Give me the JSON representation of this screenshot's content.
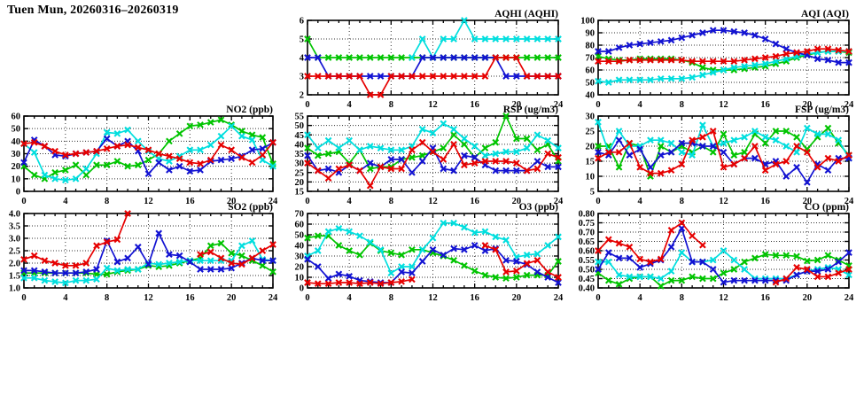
{
  "page_title": "Tuen Mun, 20260316–20260319",
  "chart_data": {
    "type": "line",
    "x_range": [
      0,
      24
    ],
    "x_ticks": {
      "values": [
        0,
        4,
        8,
        12,
        16,
        20,
        24
      ],
      "labels": [
        "0",
        "4",
        "8",
        "12",
        "16",
        "20",
        "24"
      ]
    },
    "grid": "dotted",
    "legend": "none",
    "colors": {
      "red": "#e60000",
      "green": "#00c400",
      "blue": "#1212d2",
      "cyan": "#00dede"
    },
    "draw_order": [
      "green",
      "cyan",
      "blue",
      "red"
    ],
    "charts": [
      {
        "id": "aqhi",
        "title": "AQHI (AQHI)",
        "ylim": [
          2,
          6
        ],
        "ytick_vals": [
          2,
          3,
          4,
          5,
          6
        ],
        "ytick_labels": [
          "2",
          "3",
          "4",
          "5",
          "6"
        ],
        "series": {
          "green": [
            5,
            4,
            4,
            4,
            4,
            4,
            4,
            4,
            4,
            4,
            4,
            4,
            4,
            4,
            4,
            4,
            4,
            4,
            4,
            4,
            4,
            4,
            4,
            4,
            4
          ],
          "cyan": [
            null,
            null,
            null,
            null,
            null,
            null,
            null,
            null,
            null,
            null,
            4,
            5,
            4,
            5,
            5,
            6,
            5,
            5,
            5,
            5,
            5,
            5,
            5,
            5,
            5
          ],
          "blue": [
            4,
            4,
            3,
            3,
            3,
            3,
            3,
            3,
            3,
            3,
            3,
            4,
            4,
            4,
            4,
            4,
            4,
            4,
            4,
            3,
            3,
            3,
            3,
            3,
            3
          ],
          "red": [
            3,
            3,
            3,
            3,
            3,
            3,
            2,
            2,
            3,
            3,
            3,
            3,
            3,
            3,
            3,
            3,
            3,
            3,
            4,
            4,
            4,
            3,
            3,
            3,
            3
          ]
        }
      },
      {
        "id": "aqi",
        "title": "AQI (AQI)",
        "ylim": [
          40,
          100
        ],
        "ytick_vals": [
          40,
          50,
          60,
          70,
          80,
          90,
          100
        ],
        "ytick_labels": [
          "40",
          "50",
          "60",
          "70",
          "80",
          "90",
          "100"
        ],
        "series": {
          "green": [
            71,
            69,
            68,
            68,
            69,
            69,
            69,
            69,
            68,
            66,
            62,
            60,
            60,
            60,
            61,
            62,
            63,
            65,
            67,
            70,
            72,
            74,
            75,
            75,
            74
          ],
          "cyan": [
            51,
            50,
            52,
            52,
            52,
            52,
            53,
            53,
            53,
            54,
            56,
            58,
            60,
            62,
            63,
            64,
            65,
            67,
            69,
            71,
            73,
            74,
            75,
            75,
            75
          ],
          "blue": [
            75,
            75,
            78,
            80,
            81,
            82,
            83,
            84,
            86,
            88,
            90,
            92,
            92,
            91,
            90,
            88,
            85,
            81,
            77,
            74,
            72,
            69,
            68,
            66,
            66
          ],
          "red": [
            67,
            67,
            67,
            68,
            68,
            68,
            68,
            68,
            68,
            67,
            67,
            67,
            67,
            67,
            68,
            69,
            70,
            71,
            73,
            74,
            75,
            77,
            77,
            76,
            75
          ]
        }
      },
      {
        "id": "no2",
        "title": "NO2 (ppb)",
        "ylim": [
          0,
          60
        ],
        "ytick_vals": [
          0,
          10,
          20,
          30,
          40,
          50,
          60
        ],
        "ytick_labels": [
          "0",
          "10",
          "20",
          "30",
          "40",
          "50",
          "60"
        ],
        "series": {
          "green": [
            20,
            13,
            10,
            15,
            17,
            21,
            13,
            21,
            21,
            24,
            20,
            21,
            25,
            30,
            40,
            46,
            52,
            53,
            55,
            57,
            53,
            48,
            45,
            43,
            22
          ],
          "cyan": [
            38,
            31,
            13,
            10,
            9,
            10,
            18,
            30,
            47,
            46,
            49,
            40,
            32,
            26,
            24,
            28,
            33,
            33,
            37,
            44,
            52,
            44,
            41,
            25,
            20
          ],
          "blue": [
            23,
            41,
            36,
            29,
            28,
            30,
            31,
            32,
            42,
            36,
            40,
            32,
            14,
            23,
            17,
            20,
            16,
            17,
            24,
            25,
            26,
            28,
            33,
            34,
            39
          ],
          "red": [
            38,
            39,
            36,
            32,
            29,
            30,
            31,
            32,
            34,
            36,
            37,
            35,
            33,
            30,
            28,
            26,
            23,
            22,
            25,
            37,
            33,
            27,
            23,
            29,
            39
          ]
        }
      },
      {
        "id": "rsp",
        "title": "RSP (ug/m3)",
        "ylim": [
          15,
          55
        ],
        "ytick_vals": [
          15,
          20,
          25,
          30,
          35,
          40,
          45,
          50,
          55
        ],
        "ytick_labels": [
          "15",
          "20",
          "25",
          "30",
          "35",
          "40",
          "45",
          "50",
          "55"
        ],
        "series": {
          "green": [
            38,
            34,
            35,
            36,
            30,
            37,
            27,
            28,
            28,
            32,
            33,
            34,
            36,
            38,
            45,
            40,
            33,
            38,
            41,
            55,
            43,
            43,
            37,
            40,
            31
          ],
          "cyan": [
            45,
            38,
            42,
            38,
            42,
            37,
            39,
            38,
            37,
            37,
            39,
            48,
            46,
            51,
            48,
            43,
            39,
            34,
            35,
            36,
            36,
            38,
            45,
            42,
            38
          ],
          "blue": [
            34,
            26,
            27,
            25,
            29,
            26,
            30,
            28,
            32,
            32,
            25,
            31,
            38,
            27,
            26,
            34,
            33,
            29,
            26,
            26,
            26,
            26,
            31,
            28,
            28
          ],
          "red": [
            30,
            26,
            22,
            27,
            29,
            26,
            18,
            28,
            27,
            27,
            37,
            41,
            36,
            32,
            40,
            29,
            30,
            31,
            31,
            31,
            30,
            26,
            27,
            35,
            33
          ]
        }
      },
      {
        "id": "fsp",
        "title": "FSP (ug/m3)",
        "ylim": [
          5,
          30
        ],
        "ytick_vals": [
          5,
          10,
          15,
          20,
          25,
          30
        ],
        "ytick_labels": [
          "5",
          "10",
          "15",
          "20",
          "25",
          "30"
        ],
        "series": {
          "green": [
            20,
            20,
            13,
            21,
            20,
            10,
            20,
            18,
            20,
            18,
            20,
            18,
            24,
            17,
            18,
            24,
            21,
            25,
            25,
            23,
            19,
            23,
            26,
            21,
            17
          ],
          "cyan": [
            28,
            18,
            25,
            20,
            20,
            22,
            22,
            21,
            18,
            17,
            27,
            20,
            21,
            22,
            23,
            25,
            23,
            22,
            20,
            18,
            26,
            24,
            24,
            22,
            16
          ],
          "blue": [
            18,
            17,
            22,
            17,
            19,
            13,
            17,
            18,
            21,
            21,
            20,
            20,
            18,
            14,
            16,
            16,
            14,
            15,
            10,
            13,
            8,
            14,
            12,
            16,
            16
          ],
          "red": [
            16,
            18,
            18,
            21,
            13,
            11,
            11,
            12,
            14,
            22,
            23,
            25,
            13,
            14,
            16,
            20,
            12,
            14,
            15,
            20,
            18,
            13,
            16,
            15,
            17
          ]
        }
      },
      {
        "id": "so2",
        "title": "SO2 (ppb)",
        "ylim": [
          1.0,
          4.0
        ],
        "ytick_vals": [
          1.0,
          1.5,
          2.0,
          2.5,
          3.0,
          3.5,
          4.0
        ],
        "ytick_labels": [
          "1.0",
          "1.5",
          "2.0",
          "2.5",
          "3.0",
          "3.5",
          "4.0"
        ],
        "series": {
          "green": [
            1.6,
            1.6,
            1.6,
            1.6,
            1.6,
            1.6,
            1.6,
            1.55,
            1.55,
            1.65,
            1.7,
            1.75,
            1.9,
            1.85,
            1.9,
            2.0,
            2.1,
            2.2,
            2.7,
            2.8,
            2.4,
            2.3,
            2.1,
            1.9,
            1.65
          ],
          "cyan": [
            1.4,
            1.4,
            1.3,
            1.25,
            1.2,
            1.3,
            1.3,
            1.35,
            1.8,
            1.7,
            1.75,
            1.75,
            2.0,
            1.95,
            2.0,
            2.05,
            2.1,
            2.1,
            2.1,
            2.1,
            2.1,
            2.7,
            2.9,
            2.15,
            2.1
          ],
          "blue": [
            1.7,
            1.7,
            1.65,
            1.6,
            1.6,
            1.6,
            1.65,
            1.75,
            2.9,
            2.05,
            2.2,
            2.65,
            1.95,
            3.2,
            2.35,
            2.3,
            2.05,
            1.75,
            1.75,
            1.75,
            1.8,
            2.0,
            2.2,
            2.1,
            2.1
          ],
          "red": [
            2.15,
            2.3,
            2.1,
            2.0,
            1.9,
            1.9,
            2.0,
            2.7,
            2.85,
            2.95,
            4.0,
            null,
            null,
            null,
            null,
            null,
            null,
            2.35,
            2.45,
            2.2,
            2.0,
            1.95,
            2.2,
            2.5,
            2.75
          ]
        }
      },
      {
        "id": "o3",
        "title": "O3 (ppb)",
        "ylim": [
          0,
          70
        ],
        "ytick_vals": [
          0,
          10,
          20,
          30,
          40,
          50,
          60,
          70
        ],
        "ytick_labels": [
          "0",
          "10",
          "20",
          "30",
          "40",
          "50",
          "60",
          "70"
        ],
        "series": {
          "green": [
            47,
            49,
            49,
            40,
            35,
            31,
            42,
            35,
            33,
            31,
            36,
            36,
            33,
            30,
            26,
            21,
            16,
            12,
            10,
            9,
            10,
            12,
            12,
            12,
            25
          ],
          "cyan": [
            30,
            35,
            53,
            56,
            53,
            49,
            43,
            36,
            14,
            20,
            20,
            36,
            47,
            61,
            61,
            57,
            52,
            53,
            48,
            45,
            29,
            31,
            32,
            40,
            48
          ],
          "blue": [
            27,
            20,
            9,
            13,
            11,
            7,
            6,
            5,
            5,
            15,
            14,
            25,
            36,
            31,
            37,
            36,
            40,
            35,
            37,
            26,
            25,
            22,
            15,
            10,
            5
          ],
          "red": [
            5,
            4,
            4,
            5,
            5,
            4,
            5,
            4,
            5,
            6,
            8,
            null,
            null,
            null,
            null,
            null,
            null,
            40,
            36,
            15,
            16,
            23,
            26,
            15,
            10
          ]
        }
      },
      {
        "id": "co",
        "title": "CO (ppm)",
        "ylim": [
          0.4,
          0.8
        ],
        "ytick_vals": [
          0.4,
          0.45,
          0.5,
          0.55,
          0.6,
          0.65,
          0.7,
          0.75,
          0.8
        ],
        "ytick_labels": [
          "0.40",
          "0.45",
          "0.50",
          "0.55",
          "0.60",
          "0.65",
          "0.70",
          "0.75",
          "0.80"
        ],
        "series": {
          "green": [
            0.48,
            0.44,
            0.42,
            0.45,
            0.46,
            0.46,
            0.41,
            0.44,
            0.44,
            0.46,
            0.45,
            0.45,
            0.48,
            0.5,
            0.54,
            0.56,
            0.58,
            0.575,
            0.575,
            0.57,
            0.545,
            0.55,
            0.575,
            0.55,
            0.52
          ],
          "cyan": [
            0.54,
            0.54,
            0.47,
            0.46,
            0.46,
            0.46,
            0.45,
            0.49,
            0.59,
            0.54,
            0.54,
            0.55,
            0.6,
            0.55,
            0.5,
            0.45,
            0.45,
            0.45,
            0.45,
            0.47,
            0.49,
            0.5,
            0.51,
            0.5,
            0.47
          ],
          "blue": [
            0.5,
            0.59,
            0.56,
            0.56,
            0.51,
            0.53,
            0.55,
            0.62,
            0.72,
            0.54,
            0.54,
            0.5,
            0.43,
            0.44,
            0.44,
            0.44,
            0.44,
            0.44,
            0.44,
            0.47,
            0.49,
            0.49,
            0.5,
            0.54,
            0.59
          ],
          "red": [
            0.6,
            0.66,
            0.64,
            0.62,
            0.555,
            0.54,
            0.555,
            0.71,
            0.75,
            0.68,
            0.63,
            null,
            null,
            null,
            null,
            null,
            null,
            0.43,
            0.45,
            0.51,
            0.5,
            0.46,
            0.46,
            0.48,
            0.5
          ]
        }
      }
    ]
  }
}
